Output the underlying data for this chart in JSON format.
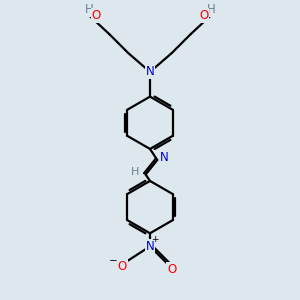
{
  "bg_color": "#dde8ee",
  "bond_color": "#000000",
  "N_color": "#0000cd",
  "O_color": "#ff0000",
  "H_color": "#708090",
  "line_width": 1.6,
  "font_size": 8.5,
  "fig_size": [
    3.0,
    3.0
  ],
  "dpi": 100,
  "xlim": [
    0,
    10
  ],
  "ylim": [
    0,
    10
  ]
}
